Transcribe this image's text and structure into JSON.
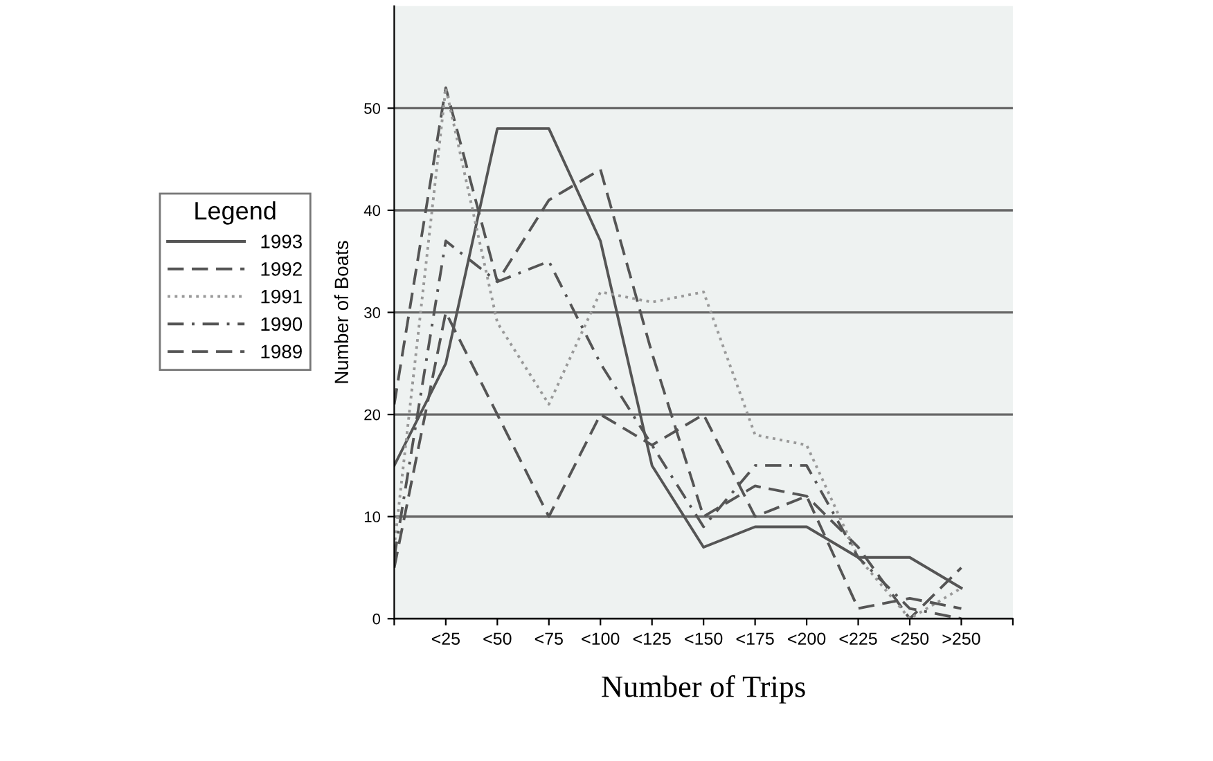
{
  "chart_data": {
    "type": "line",
    "xlabel": "Number of Trips",
    "ylabel": "Number of Boats",
    "legend_title": "Legend",
    "categories": [
      null,
      "<25",
      "<50",
      "<75",
      "<100",
      "<125",
      "<150",
      "<175",
      "<200",
      "<225",
      "<250",
      ">250",
      null
    ],
    "ylim": [
      0,
      60
    ],
    "yticks": [
      0,
      10,
      20,
      30,
      40,
      50
    ],
    "grid": "y",
    "legend": "left",
    "marker": "none",
    "series": [
      {
        "name": "1993",
        "color": "#555555",
        "line_style": "solid",
        "values": [
          15,
          25,
          48,
          48,
          37,
          15,
          7,
          9,
          9,
          6,
          6,
          3,
          null
        ]
      },
      {
        "name": "1992",
        "color": "#555555",
        "line_style": "dashed",
        "values": [
          21,
          52,
          33,
          41,
          44,
          26,
          10,
          13,
          12,
          7,
          0,
          5,
          null
        ]
      },
      {
        "name": "1991",
        "color": "#999999",
        "line_style": "dotted",
        "values": [
          7,
          52,
          29,
          21,
          32,
          31,
          32,
          18,
          17,
          6,
          0,
          3,
          null
        ]
      },
      {
        "name": "1990",
        "color": "#555555",
        "line_style": "dashdot",
        "values": [
          6,
          37,
          33,
          35,
          25,
          17,
          9,
          15,
          15,
          6,
          1,
          0,
          null
        ]
      },
      {
        "name": "1989",
        "color": "#555555",
        "line_style": "dashed",
        "values": [
          5,
          30,
          20,
          10,
          20,
          17,
          20,
          10,
          12,
          1,
          2,
          1,
          null
        ]
      }
    ]
  }
}
